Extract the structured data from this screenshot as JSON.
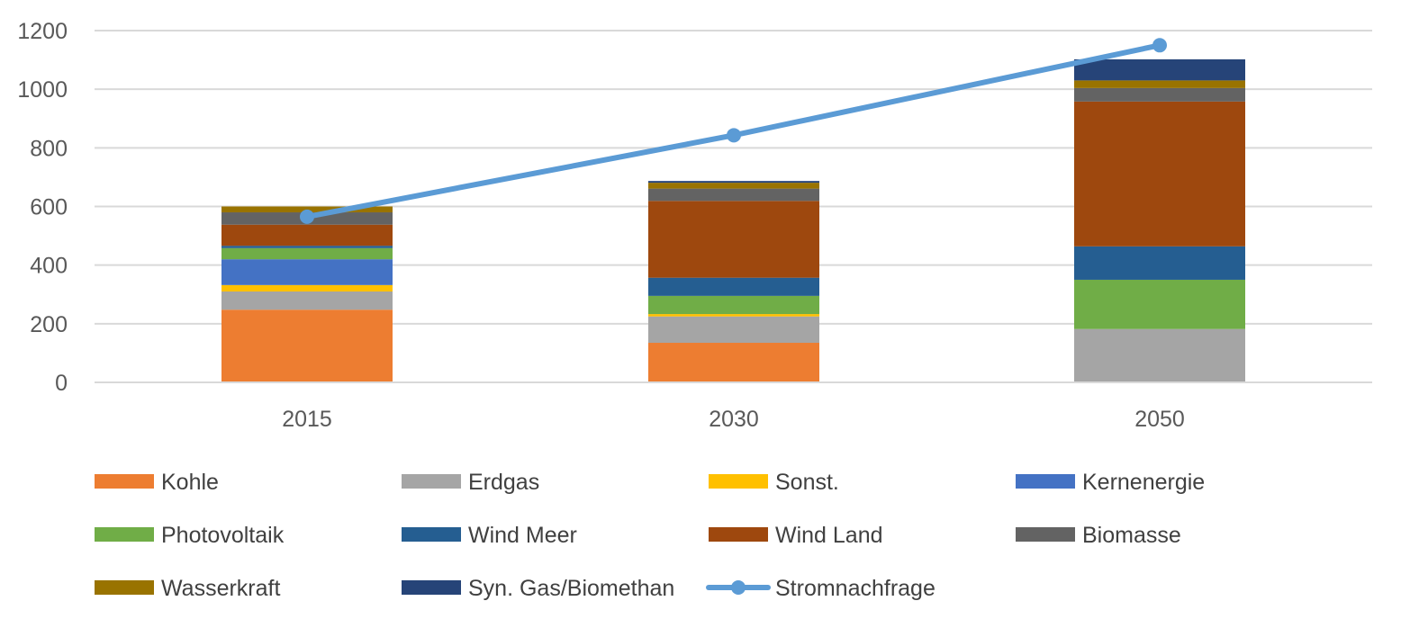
{
  "chart_data": {
    "type": "bar",
    "stacked": true,
    "categories": [
      "2015",
      "2030",
      "2050"
    ],
    "ylim": [
      0,
      1200
    ],
    "yticks": [
      0,
      200,
      400,
      600,
      800,
      1000,
      1200
    ],
    "grid": true,
    "legend_position": "bottom",
    "series": [
      {
        "name": "Kohle",
        "color": "#ED7D31",
        "values": [
          248,
          135,
          0
        ]
      },
      {
        "name": "Erdgas",
        "color": "#A5A5A5",
        "values": [
          62,
          90,
          182
        ]
      },
      {
        "name": "Sonst.",
        "color": "#FFC000",
        "values": [
          22,
          8,
          0
        ]
      },
      {
        "name": "Kernenergie",
        "color": "#4472C4",
        "values": [
          88,
          0,
          0
        ]
      },
      {
        "name": "Photovoltaik",
        "color": "#70AD47",
        "values": [
          38,
          62,
          168
        ]
      },
      {
        "name": "Wind Meer",
        "color": "#255E91",
        "values": [
          8,
          62,
          114
        ]
      },
      {
        "name": "Wind Land",
        "color": "#9E480E",
        "values": [
          72,
          262,
          494
        ]
      },
      {
        "name": "Biomasse",
        "color": "#636363",
        "values": [
          42,
          42,
          46
        ]
      },
      {
        "name": "Wasserkraft",
        "color": "#997300",
        "values": [
          20,
          20,
          26
        ]
      },
      {
        "name": "Syn. Gas/Biomethan",
        "color": "#264478",
        "values": [
          0,
          6,
          72
        ]
      }
    ],
    "line_series": {
      "name": "Stromnachfrage",
      "color": "#5B9BD5",
      "values": [
        565,
        843,
        1150
      ]
    }
  }
}
